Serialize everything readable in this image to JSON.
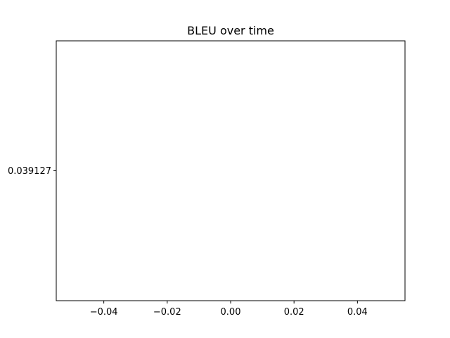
{
  "chart_data": {
    "type": "line",
    "title": "BLEU over time",
    "xlabel": "",
    "ylabel": "",
    "x": [
      0
    ],
    "series": [
      {
        "values": [
          0.039127
        ],
        "color": "#1f77b4"
      }
    ],
    "xlim": [
      -0.055,
      0.055
    ],
    "ylim": [
      0.0351143,
      0.0431397
    ],
    "xticks": [
      -0.04,
      -0.02,
      0.0,
      0.02,
      0.04
    ],
    "xtick_labels": [
      "−0.04",
      "−0.02",
      "0.00",
      "0.02",
      "0.04"
    ],
    "yticks": [
      0.039127
    ],
    "ytick_labels": [
      "0.039127"
    ],
    "grid": false,
    "colors": {
      "background": "#ffffff",
      "axes": "#000000",
      "text": "#000000"
    }
  }
}
